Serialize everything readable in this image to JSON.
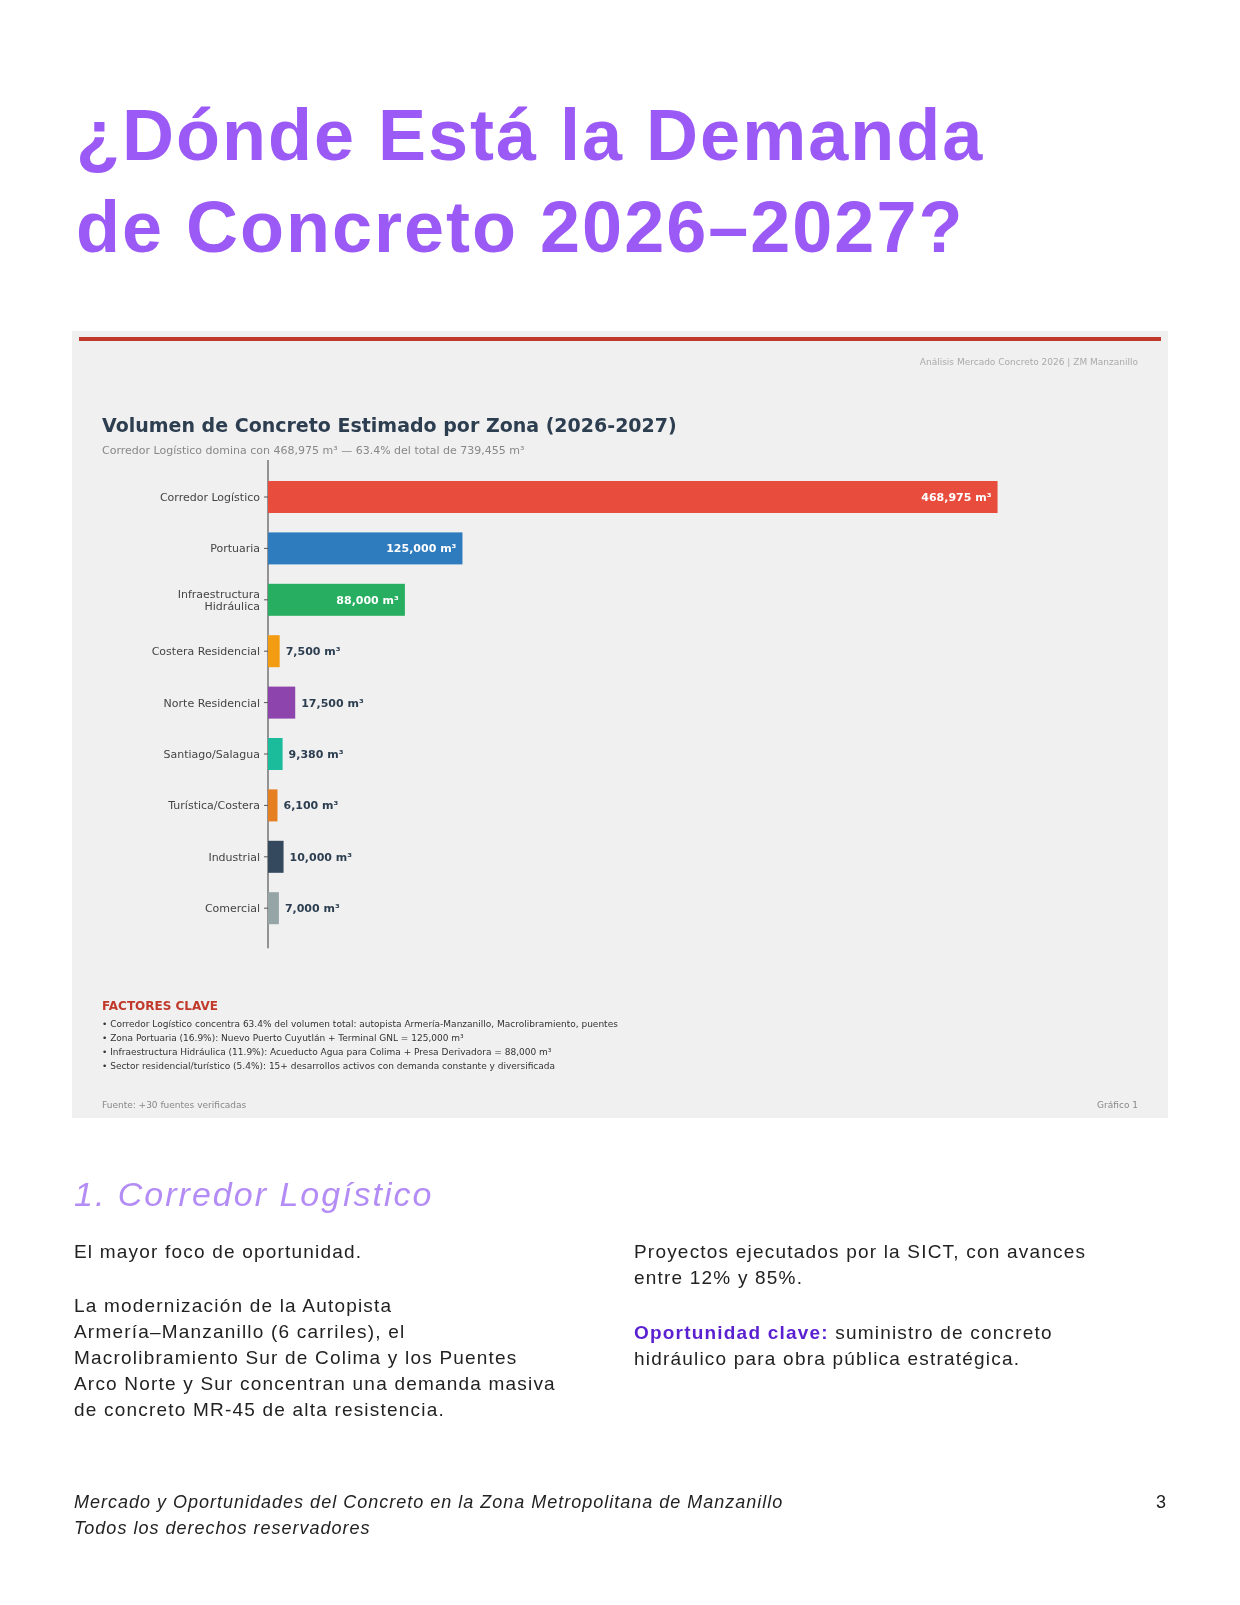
{
  "chart_data": {
    "type": "bar",
    "orientation": "horizontal",
    "title": "Volumen de Concreto Estimado por Zona (2026-2027)",
    "subtitle": "Corredor Logístico domina con 468,975 m³ — 63.4% del total de 739,455 m³",
    "categories": [
      "Corredor Logístico",
      "Portuaria",
      "Infraestructura Hidráulica",
      "Costera Residencial",
      "Norte Residencial",
      "Santiago/Salagua",
      "Turística/Costera",
      "Industrial",
      "Comercial"
    ],
    "values": [
      468975,
      125000,
      88000,
      7500,
      17500,
      9380,
      6100,
      10000,
      7000
    ],
    "colors": [
      "#e74c3c",
      "#2e7bbd",
      "#27ae60",
      "#f39c12",
      "#8e44ad",
      "#1abc9c",
      "#e67e22",
      "#34495e",
      "#95a5a6"
    ],
    "value_labels": [
      "468,975 m³",
      "125,000 m³",
      "88,000 m³",
      "7,500 m³",
      "17,500 m³",
      "9,380 m³",
      "6,100 m³",
      "10,000 m³",
      "7,000 m³"
    ],
    "annotations": [
      "¿Dónde Está la Demanda de Concreto 2026–2027?",
      "Análisis Mercado Concreto 2026 | ZM Manzanillo",
      "FACTORES CLAVE",
      "• Corredor Logístico concentra 63.4% del volumen total: autopista Armería-Manzanillo, Macrolibramiento, puentes",
      "• Zona Portuaria (16.9%): Nuevo Puerto Cuyutlán + Terminal GNL = 125,000 m³",
      "• Infraestructura Hidráulica (11.9%): Acueducto Agua para Colima + Presa Derivadora = 88,000 m³",
      "• Sector residencial/turístico (5.4%): 15+ desarrollos activos con demanda constante y diversificada",
      "Fuente: +30 fuentes verificadas",
      "Gráfico 1",
      "1. Corredor Logístico",
      "El mayor foco de oportunidad.",
      "La modernización de la Autopista Armería–Manzanillo (6 carriles), el Macrolibramiento Sur de Colima y los Puentes Arco Norte y Sur concentran una demanda masiva de concreto MR-45 de alta resistencia.",
      "Proyectos ejecutados por la SICT, con avances entre 12% y 85%.",
      "Oportunidad clave: suministro de concreto hidráulico para obra pública estratégica.",
      "Mercado y Oportunidades del Concreto en la Zona Metropolitana de Manzanillo",
      "Todos los derechos reservadores",
      "3"
    ]
  }
}
